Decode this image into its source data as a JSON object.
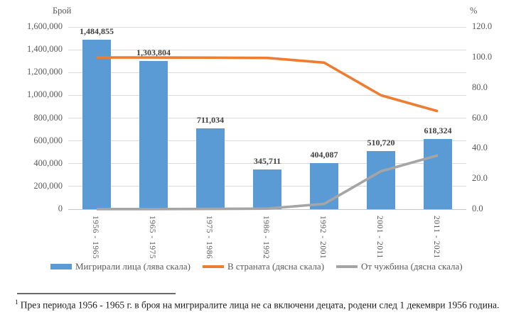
{
  "chart_data": {
    "type": "bar",
    "title": "",
    "categories": [
      "1956 - 1965",
      "1965 - 1975",
      "1975 - 1986",
      "1986 - 1992",
      "1992 - 2001",
      "2001 - 2011",
      "2011 - 2021"
    ],
    "series": [
      {
        "name": "Мигрирали лица (лява скала)",
        "type": "bar",
        "axis": "left",
        "color": "#5B9BD5",
        "values": [
          1484855,
          1303804,
          711034,
          345711,
          404087,
          510720,
          618324
        ],
        "value_labels": [
          "1,484,855",
          "1,303,804",
          "711,034",
          "345,711",
          "404,087",
          "510,720",
          "618,324"
        ]
      },
      {
        "name": "В страната (дясна скала)",
        "type": "line",
        "axis": "right",
        "color": "#ED7D31",
        "values": [
          99.9,
          99.9,
          99.8,
          99.6,
          96.5,
          75.0,
          64.5
        ]
      },
      {
        "name": "От чужбина (дясна скала)",
        "type": "line",
        "axis": "right",
        "color": "#A5A5A5",
        "values": [
          0.1,
          0.1,
          0.2,
          0.4,
          3.5,
          25.0,
          35.5
        ]
      }
    ],
    "left_axis": {
      "title": "Брой",
      "min": 0,
      "max": 1600000,
      "tick_values": [
        0,
        200000,
        400000,
        600000,
        800000,
        1000000,
        1200000,
        1400000,
        1600000
      ],
      "tick_labels": [
        "0",
        "200,000",
        "400,000",
        "600,000",
        "800,000",
        "1,000,000",
        "1,200,000",
        "1,400,000",
        "1,600,000"
      ]
    },
    "right_axis": {
      "title": "%",
      "min": 0,
      "max": 120,
      "tick_values": [
        0,
        20,
        40,
        60,
        80,
        100,
        120
      ],
      "tick_labels": [
        "0.0",
        "20.0",
        "40.0",
        "60.0",
        "80.0",
        "100.0",
        "120.0"
      ]
    },
    "grid": true,
    "legend_position": "bottom"
  },
  "colors": {
    "gridline": "#D9D9D9",
    "tick_text": "#595959",
    "data_label": "#3f3f3f"
  },
  "footnote": {
    "marker": "1",
    "text": "През периода 1956 - 1965 г. в броя на мигриралите лица не са включени децата, родени след 1 декември 1956 година."
  }
}
